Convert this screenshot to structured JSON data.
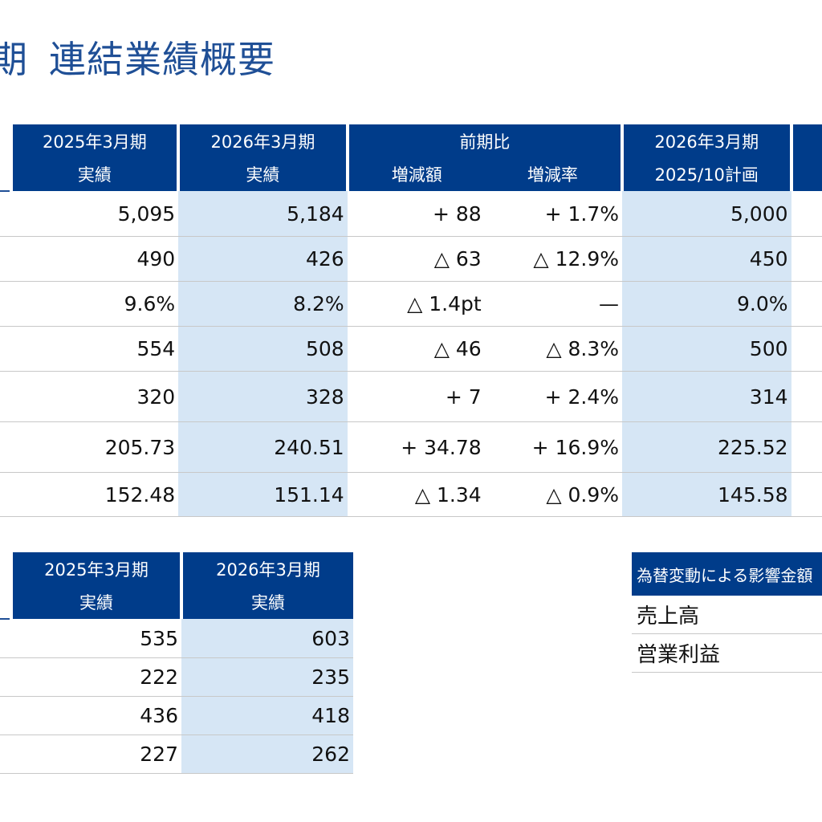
{
  "title": {
    "period": "期",
    "text": "連結業績概要"
  },
  "main_table": {
    "headers": {
      "col1": [
        "2025年3月期",
        "実績"
      ],
      "col2": [
        "2026年3月期",
        "実績"
      ],
      "comparison": "前期比",
      "change_amount": "増減額",
      "change_rate": "増減率",
      "col5": [
        "2026年3月期",
        "2025/10計画"
      ]
    },
    "rows": [
      {
        "v1": "5,095",
        "v2": "5,184",
        "amt": "+ 88",
        "rate": "+ 1.7%",
        "plan": "5,000"
      },
      {
        "v1": "490",
        "v2": "426",
        "amt": "△ 63",
        "rate": "△ 12.9%",
        "plan": "450"
      },
      {
        "v1": "9.6%",
        "v2": "8.2%",
        "amt": "△ 1.4pt",
        "rate": "—",
        "plan": "9.0%"
      },
      {
        "v1": "554",
        "v2": "508",
        "amt": "△ 46",
        "rate": "△ 8.3%",
        "plan": "500"
      },
      {
        "v1": "320",
        "v2": "328",
        "amt": "+ 7",
        "rate": "+ 2.4%",
        "plan": "314"
      },
      {
        "v1": "205.73",
        "v2": "240.51",
        "amt": "+ 34.78",
        "rate": "+ 16.9%",
        "plan": "225.52"
      },
      {
        "v1": "152.48",
        "v2": "151.14",
        "amt": "△ 1.34",
        "rate": "△ 0.9%",
        "plan": "145.58"
      }
    ]
  },
  "segment_table": {
    "headers": {
      "col1": [
        "2025年3月期",
        "実績"
      ],
      "col2": [
        "2026年3月期",
        "実績"
      ]
    },
    "rows": [
      {
        "v1": "535",
        "v2": "603"
      },
      {
        "v1": "222",
        "v2": "235"
      },
      {
        "v1": "436",
        "v2": "418"
      },
      {
        "v1": "227",
        "v2": "262"
      }
    ]
  },
  "fx_table": {
    "header": "為替変動による影響金額",
    "rows": [
      "売上高",
      "営業利益"
    ]
  },
  "colors": {
    "header_bg": "#003c8a",
    "highlight_bg": "#d6e6f5",
    "title": "#1f4f96"
  }
}
